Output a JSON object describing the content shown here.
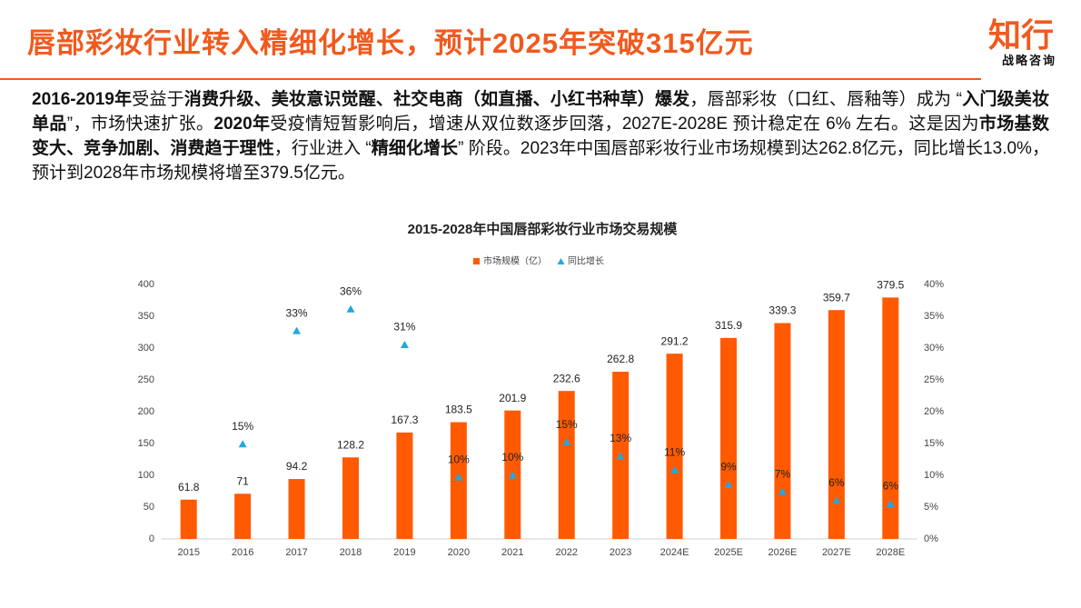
{
  "header": {
    "title": "唇部彩妆行业转入精细化增长，预计2025年突破315亿元",
    "logo": "知行",
    "logo_sub": "战略咨询"
  },
  "paragraph": [
    {
      "text": "2016-2019年",
      "bold": true
    },
    {
      "text": "受益于",
      "bold": false
    },
    {
      "text": "消费升级、美妆意识觉醒、社交电商（如直播、小红书种草）爆发",
      "bold": true
    },
    {
      "text": "，唇部彩妆（口红、唇釉等）成为 “",
      "bold": false
    },
    {
      "text": "入门级美妆单品",
      "bold": true
    },
    {
      "text": "”，市场快速扩张。",
      "bold": false
    },
    {
      "text": "2020年",
      "bold": true
    },
    {
      "text": "受疫情短暂影响后，增速从双位数逐步回落，2027E-2028E 预计稳定在 6% 左右。这是因为",
      "bold": false
    },
    {
      "text": "市场基数变大、竞争加剧、消费趋于理性",
      "bold": true
    },
    {
      "text": "，行业进入 “",
      "bold": false
    },
    {
      "text": "精细化增长",
      "bold": true
    },
    {
      "text": "” 阶段。2023年中国唇部彩妆行业市场规模到达262.8亿元，同比增长13.0%，预计到2028年市场规模将增至379.5亿元。",
      "bold": false
    }
  ],
  "chart_data": {
    "type": "bar",
    "title": "2015-2028年中国唇部彩妆行业市场交易规模",
    "categories": [
      "2015",
      "2016",
      "2017",
      "2018",
      "2019",
      "2020",
      "2021",
      "2022",
      "2023",
      "2024E",
      "2025E",
      "2026E",
      "2027E",
      "2028E"
    ],
    "series": [
      {
        "name": "市场规模（亿）",
        "type": "bar",
        "color": "#ff5a00",
        "values": [
          61.8,
          71,
          94.2,
          128.2,
          167.3,
          183.5,
          201.9,
          232.6,
          262.8,
          291.2,
          315.9,
          339.3,
          359.7,
          379.5
        ]
      },
      {
        "name": "同比增长",
        "type": "scatter",
        "marker": "triangle",
        "axis": "y2",
        "color": "#22a7e0",
        "values": [
          null,
          14.9,
          32.7,
          36.1,
          30.5,
          9.7,
          10.0,
          15.2,
          13.0,
          10.8,
          8.5,
          7.4,
          6.0,
          5.5
        ],
        "value_labels": [
          null,
          "15%",
          "33%",
          "36%",
          "31%",
          "10%",
          "10%",
          "15%",
          "13%",
          "11%",
          "9%",
          "7%",
          "6%",
          "6%"
        ]
      }
    ],
    "ylim": [
      0,
      400
    ],
    "yticks": [
      0,
      50,
      100,
      150,
      200,
      250,
      300,
      350,
      400
    ],
    "y2lim": [
      0,
      40
    ],
    "y2ticks": [
      {
        "value": 0,
        "label": "0%"
      },
      {
        "value": 5,
        "label": "5%"
      },
      {
        "value": 10,
        "label": "10%"
      },
      {
        "value": 15,
        "label": "15%"
      },
      {
        "value": 20,
        "label": "20%"
      },
      {
        "value": 25,
        "label": "25%"
      },
      {
        "value": 30,
        "label": "30%"
      },
      {
        "value": 35,
        "label": "35%"
      },
      {
        "value": 40,
        "label": "40%"
      }
    ],
    "grid": false
  }
}
